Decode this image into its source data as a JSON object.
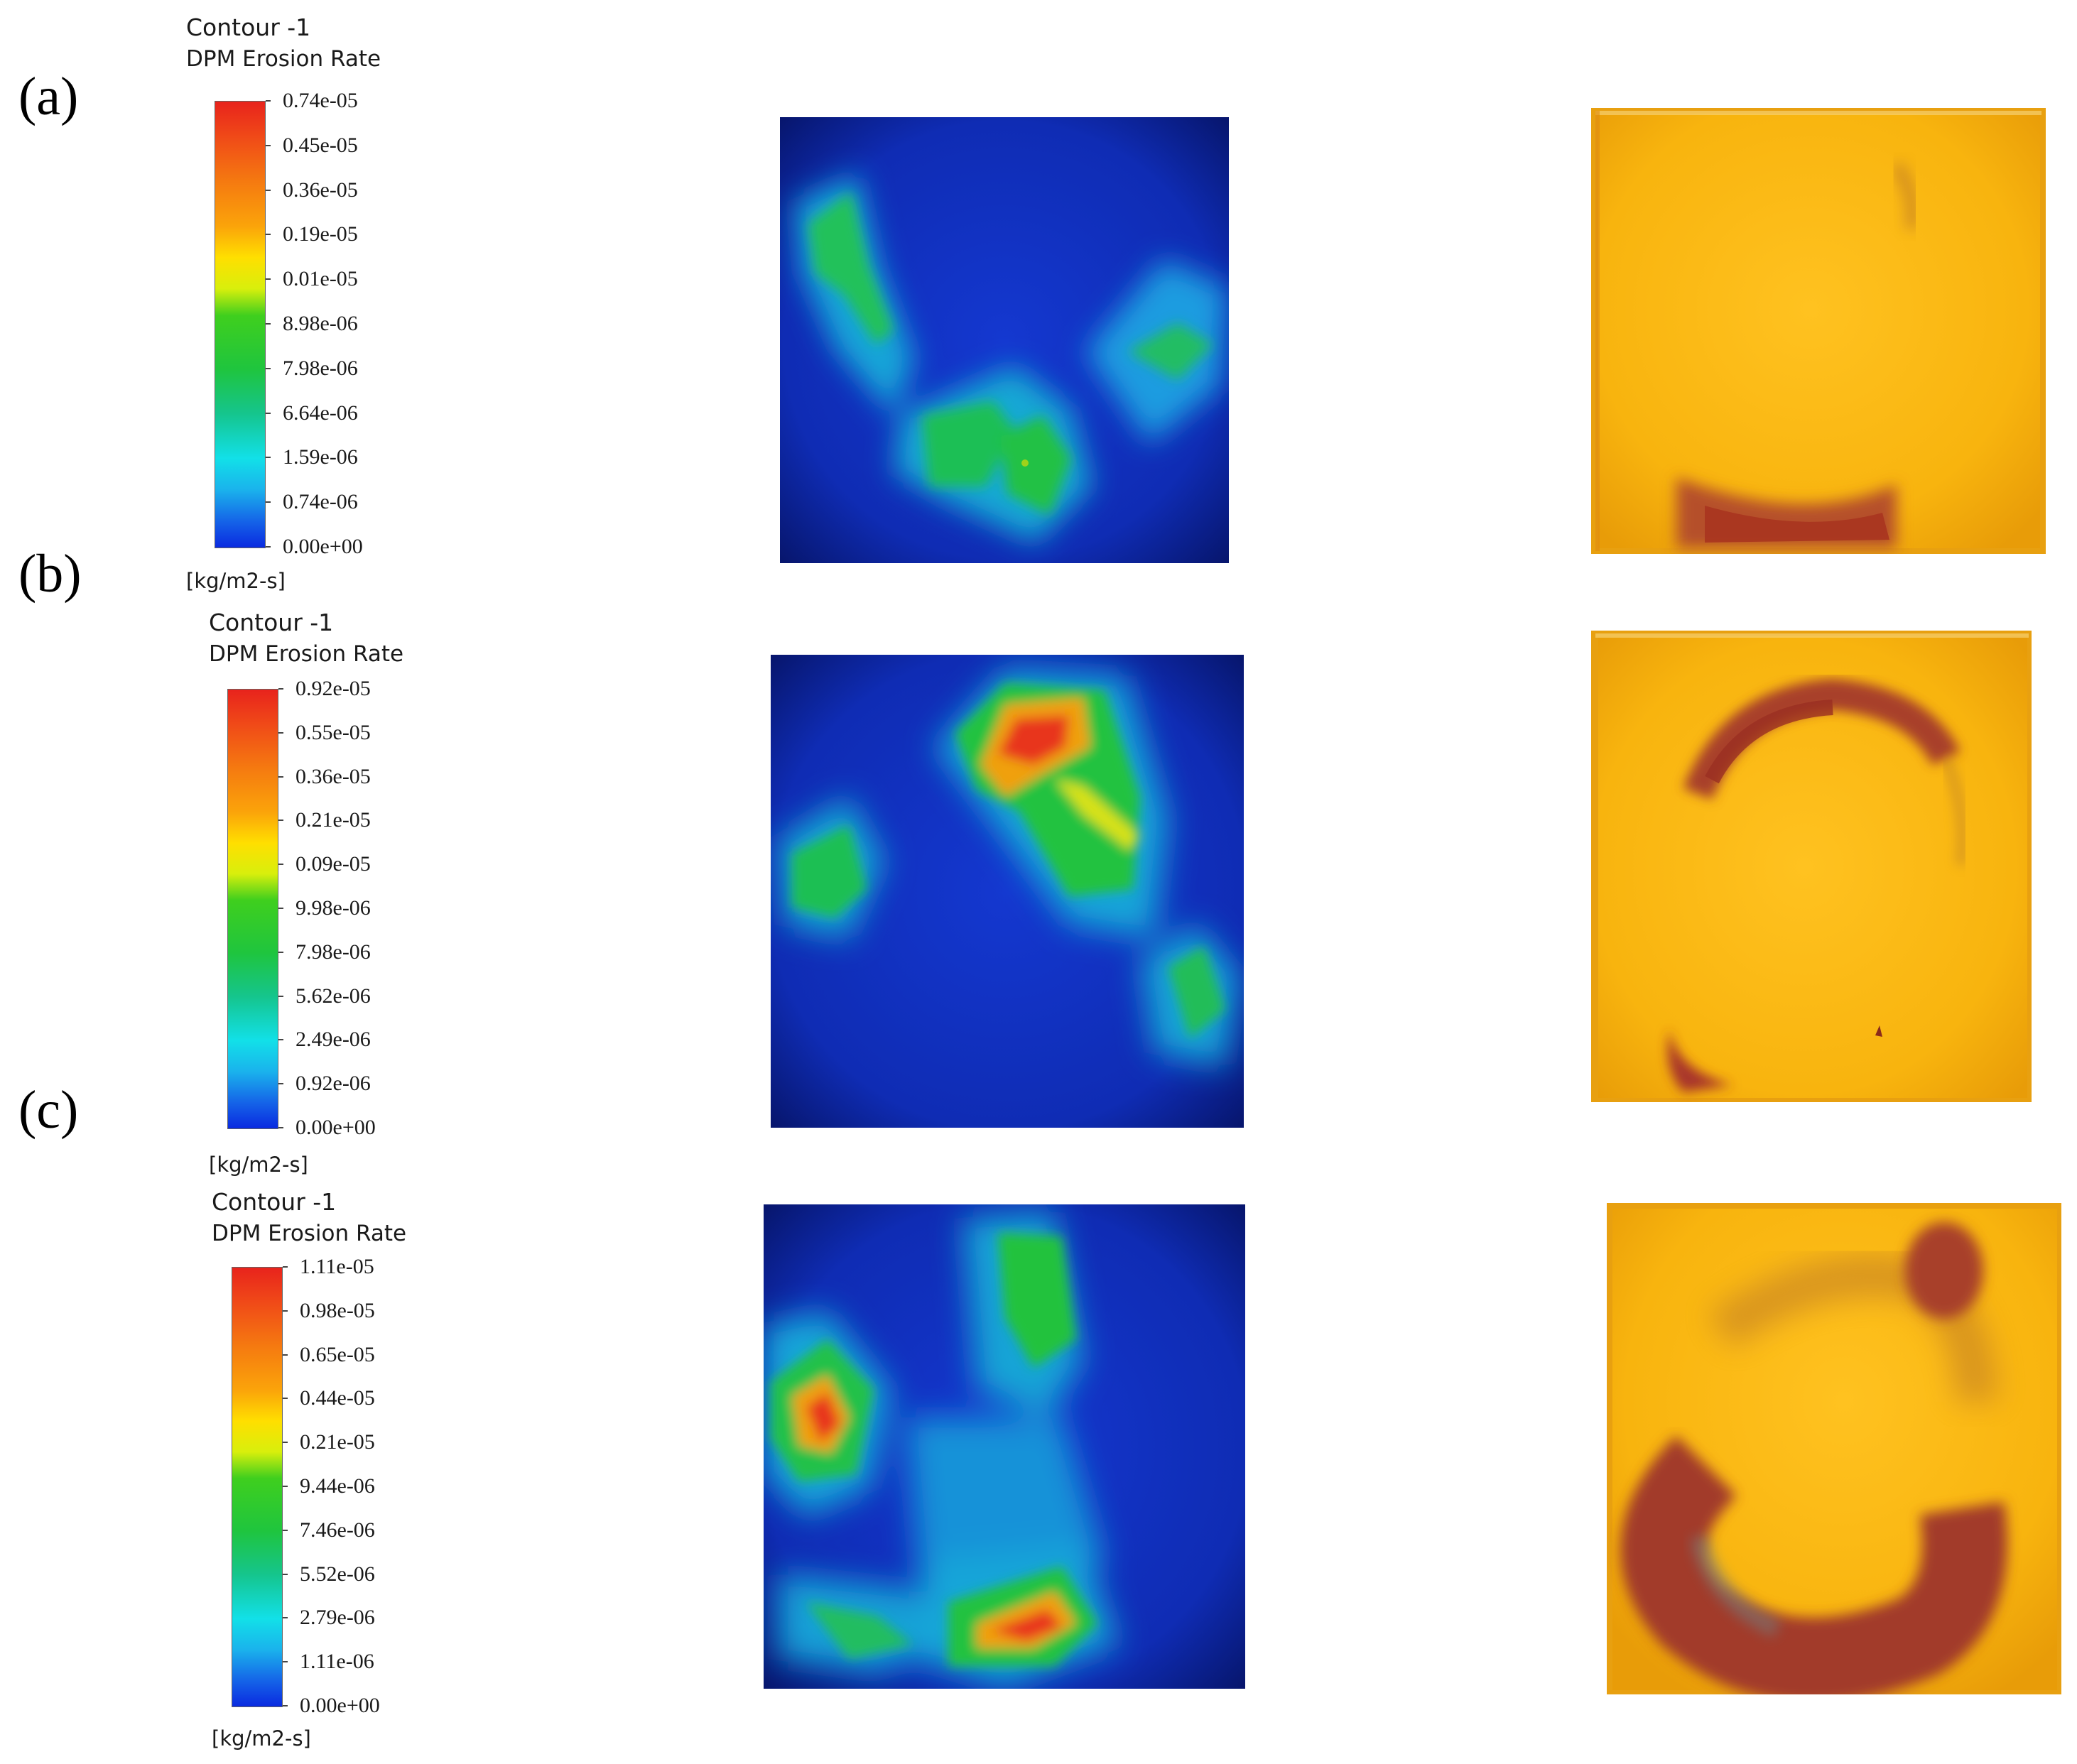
{
  "panels": [
    {
      "label": "(a)",
      "legend": {
        "title": "Contour -1",
        "subtitle": "DPM Erosion Rate",
        "ticks": [
          "0.74e-05",
          "0.45e-05",
          "0.36e-05",
          "0.19e-05",
          "0.01e-05",
          "8.98e-06",
          "7.98e-06",
          "6.64e-06",
          "1.59e-06",
          "0.74e-06",
          "0.00e+00"
        ],
        "units": "[kg/m2-s]"
      }
    },
    {
      "label": "(b)",
      "legend": {
        "title": "Contour -1",
        "subtitle": "DPM Erosion Rate",
        "ticks": [
          "0.92e-05",
          "0.55e-05",
          "0.36e-05",
          "0.21e-05",
          "0.09e-05",
          "9.98e-06",
          "7.98e-06",
          "5.62e-06",
          "2.49e-06",
          "0.92e-06",
          "0.00e+00"
        ],
        "units": "[kg/m2-s]"
      }
    },
    {
      "label": "(c)",
      "legend": {
        "title": "Contour -1",
        "subtitle": "DPM Erosion Rate",
        "ticks": [
          "1.11e-05",
          "0.98e-05",
          "0.65e-05",
          "0.44e-05",
          "0.21e-05",
          "9.44e-06",
          "7.46e-06",
          "5.52e-06",
          "2.79e-06",
          "1.11e-06",
          "0.00e+00"
        ],
        "units": "[kg/m2-s]"
      }
    }
  ],
  "colors": {
    "background_low": "#0a1c8c",
    "contour_low": "#1230c8",
    "contour_mid": "#23c43a",
    "contour_high": "#e8231c",
    "specimen_yellow": "#f8b40e",
    "erosion_dark": "#a83a2a"
  }
}
